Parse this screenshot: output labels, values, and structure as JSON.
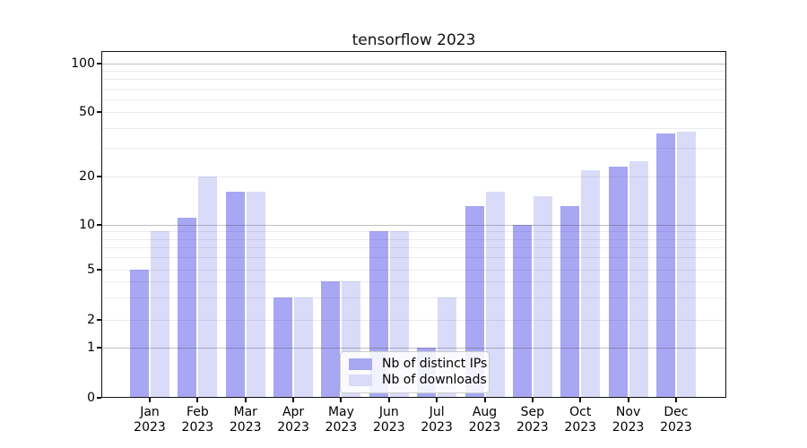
{
  "title": "tensorflow 2023",
  "legend": {
    "items": [
      {
        "label": "Nb of distinct IPs",
        "color": "#a7a7f4"
      },
      {
        "label": "Nb of downloads",
        "color": "#dadaf9"
      }
    ]
  },
  "chart_data": {
    "type": "bar",
    "title": "tensorflow 2023",
    "categories": [
      "Jan 2023",
      "Feb 2023",
      "Mar 2023",
      "Apr 2023",
      "May 2023",
      "Jun 2023",
      "Jul 2023",
      "Aug 2023",
      "Sep 2023",
      "Oct 2023",
      "Nov 2023",
      "Dec 2023"
    ],
    "series": [
      {
        "name": "Nb of distinct IPs",
        "color": "#a7a7f4",
        "values": [
          5,
          11,
          16,
          3,
          4,
          9,
          1,
          13,
          10,
          13,
          23,
          37
        ]
      },
      {
        "name": "Nb of downloads",
        "color": "#dadaf9",
        "values": [
          9,
          20,
          16,
          3,
          4,
          9,
          3,
          16,
          15,
          22,
          25,
          38
        ]
      }
    ],
    "yscale": "symlog",
    "yticks": [
      100,
      50,
      20,
      10,
      5,
      2,
      1,
      0
    ],
    "minor_gridlines": [
      2,
      3,
      4,
      5,
      6,
      7,
      8,
      9,
      20,
      30,
      40,
      50,
      60,
      70,
      80,
      90
    ],
    "major_gridlines": [
      1,
      10,
      100
    ],
    "ylim": [
      0,
      120
    ],
    "xlabel": "",
    "ylabel": "",
    "grid": true,
    "legend_position": "lower center"
  }
}
